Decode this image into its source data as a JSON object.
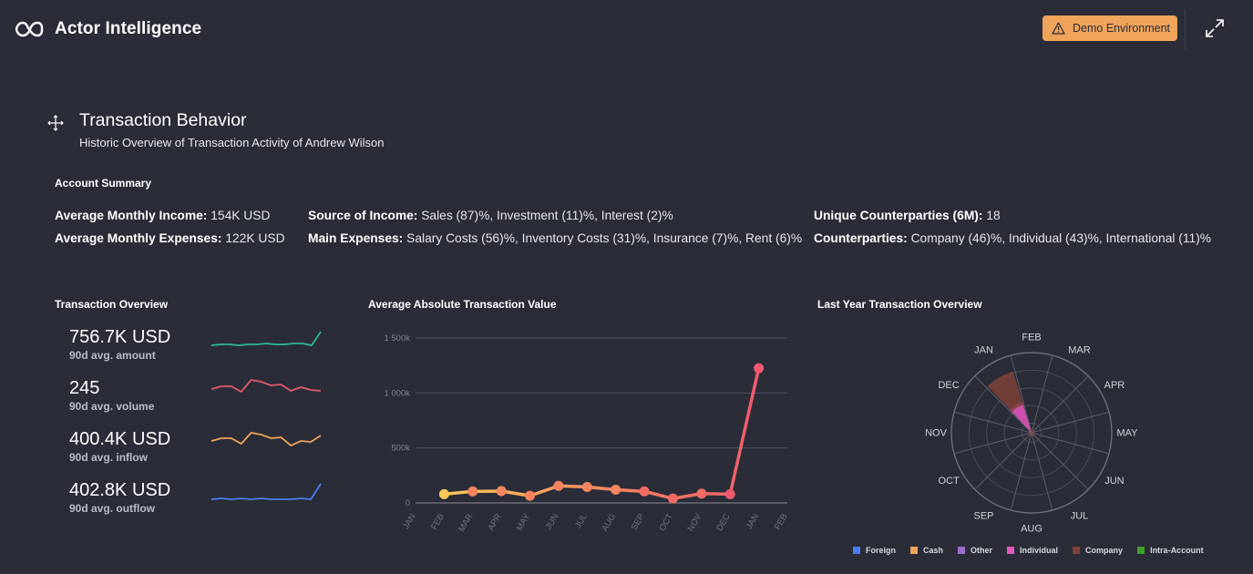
{
  "header": {
    "app_title": "Actor Intelligence",
    "badge_label": "Demo Environment",
    "icons": [
      "infinity-logo-icon",
      "warning-icon",
      "expand-icon"
    ],
    "badge_color": "#f0a35a"
  },
  "section": {
    "title": "Transaction Behavior",
    "subtitle": "Historic Overview of Transaction Activity of Andrew Wilson",
    "icon": "move-arrows-icon"
  },
  "account_summary": {
    "heading": "Account Summary",
    "avg_income_label": "Average Monthly Income:",
    "avg_income_value": "154K USD",
    "avg_expenses_label": "Average Monthly Expenses:",
    "avg_expenses_value": "122K USD",
    "source_income_label": "Source of Income:",
    "source_income_value": "Sales (87)%, Investment (11)%, Interest (2)%",
    "main_expenses_label": "Main Expenses:",
    "main_expenses_value": "Salary Costs (56)%, Inventory Costs (31)%, Insurance (7)%, Rent (6)%",
    "unique_cp_label": "Unique Counterparties (6M):",
    "unique_cp_value": "18",
    "cp_label": "Counterparties:",
    "cp_value": "Company (46)%, Individual (43)%, International (11)%"
  },
  "transaction_overview": {
    "heading": "Transaction Overview",
    "metrics": [
      {
        "value": "756.7K USD",
        "label": "90d avg. amount",
        "color": "#2fb59a",
        "spark": [
          20,
          19,
          19,
          20,
          19,
          19,
          18,
          19,
          19,
          18,
          18,
          20,
          5
        ]
      },
      {
        "value": "245",
        "label": "90d avg. volume",
        "color": "#e2596a",
        "spark": [
          12,
          9,
          9,
          15,
          2,
          4,
          8,
          7,
          14,
          10,
          13,
          14
        ]
      },
      {
        "value": "400.4K USD",
        "label": "90d avg. inflow",
        "color": "#f0a35a",
        "spark": [
          13,
          10,
          10,
          16,
          4,
          6,
          10,
          9,
          18,
          13,
          14,
          7
        ]
      },
      {
        "value": "402.8K USD",
        "label": "90d avg. outflow",
        "color": "#4a7df0",
        "spark": [
          21,
          20,
          21,
          20,
          21,
          20,
          21,
          21,
          21,
          20,
          21,
          4
        ]
      }
    ]
  },
  "chart_data": [
    {
      "type": "line",
      "title": "Average Absolute Transaction Value",
      "x": [
        "JAN",
        "FEB",
        "MAR",
        "APR",
        "MAY",
        "JUN",
        "JUL",
        "AUG",
        "SEP",
        "OCT",
        "NOV",
        "DEC",
        "JAN",
        "FEB"
      ],
      "y_ticks": [
        "0",
        "500k",
        "1 000k",
        "1 500k"
      ],
      "ylim": [
        0,
        1500000
      ],
      "series": [
        {
          "values": [
            null,
            80000,
            105000,
            108000,
            65000,
            155000,
            145000,
            120000,
            105000,
            40000,
            85000,
            80000,
            1225000,
            null
          ]
        }
      ],
      "gradient_colors": [
        "#ffc857",
        "#f05a6e"
      ],
      "grid": true
    },
    {
      "type": "polar-area",
      "title": "Last Year Transaction Overview",
      "categories": [
        "FEB",
        "MAR",
        "APR",
        "MAY",
        "JUN",
        "JUL",
        "AUG",
        "SEP",
        "OCT",
        "NOV",
        "DEC",
        "JAN"
      ],
      "series": [
        {
          "name": "Foreign",
          "color": "#4a7df0",
          "values": [
            0,
            0,
            0,
            0,
            0,
            0,
            0,
            0,
            0,
            0,
            0,
            0
          ]
        },
        {
          "name": "Cash",
          "color": "#f0a35a",
          "values": [
            0,
            0,
            0,
            0,
            0,
            0,
            0,
            0,
            0,
            0,
            0,
            0
          ]
        },
        {
          "name": "Other",
          "color": "#9a6bd0",
          "values": [
            0,
            0,
            0,
            0,
            0,
            0,
            0,
            0,
            0,
            0,
            0,
            0
          ]
        },
        {
          "name": "Individual",
          "color": "#e857c0",
          "values": [
            0,
            0,
            0,
            0,
            0,
            0,
            0,
            0,
            0,
            0,
            0,
            0.4
          ]
        },
        {
          "name": "Company",
          "color": "#7e4237",
          "values": [
            0,
            0,
            0,
            0,
            0,
            0,
            0,
            0,
            0,
            0,
            0,
            0.8
          ]
        },
        {
          "name": "Intra-Account",
          "color": "#3f9d2a",
          "values": [
            0,
            0,
            0,
            0,
            0,
            0,
            0,
            0,
            0,
            0,
            0,
            0
          ]
        }
      ]
    }
  ],
  "avg_value_heading": "Average Absolute Transaction Value",
  "polar_heading": "Last Year Transaction Overview"
}
